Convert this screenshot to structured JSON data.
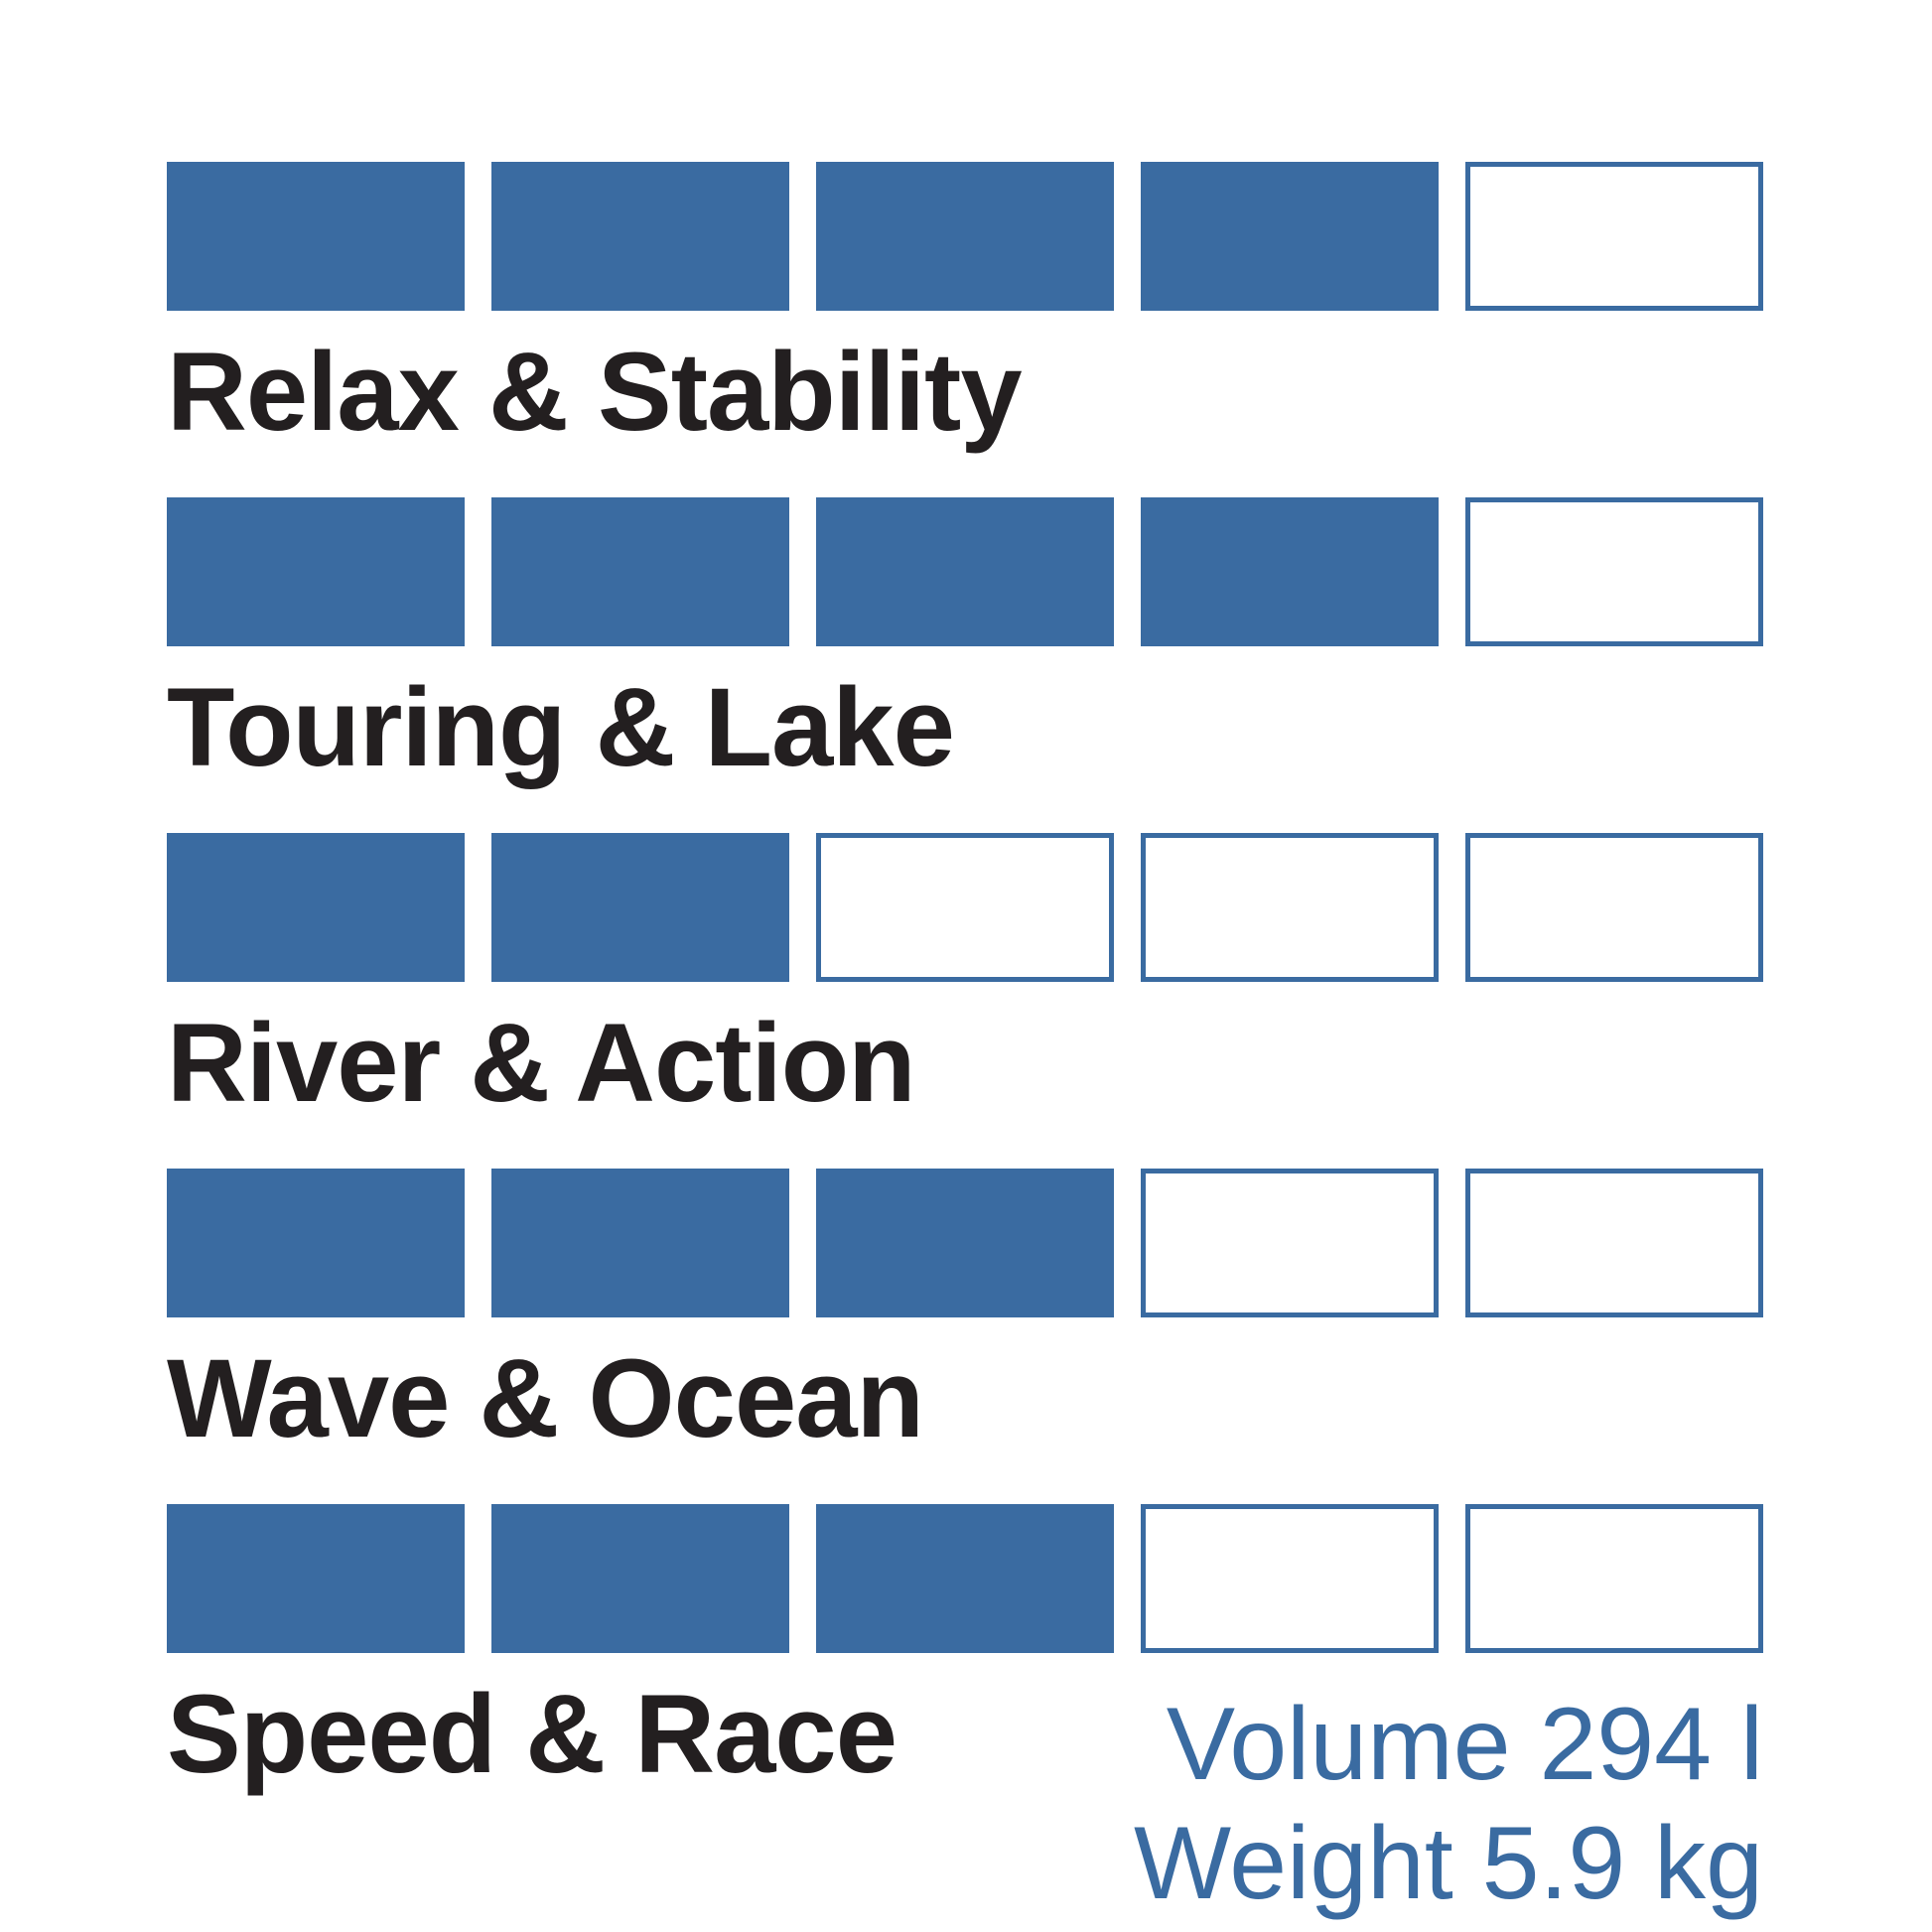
{
  "chart_data": {
    "type": "bar",
    "subtype": "rating-blocks",
    "title": "",
    "categories": [
      "Relax & Stability",
      "Touring & Lake",
      "River & Action",
      "Wave & Ocean",
      "Speed & Race"
    ],
    "values": [
      4,
      4,
      2,
      3,
      3
    ],
    "value_max": 5,
    "legend_position": "none",
    "grid": false,
    "annotations": [
      "Volume 294 l",
      "Weight 5.9 kg"
    ]
  },
  "ratings": [
    {
      "label": "Relax & Stability",
      "filled": 4,
      "total": 5
    },
    {
      "label": "Touring & Lake",
      "filled": 4,
      "total": 5
    },
    {
      "label": "River & Action",
      "filled": 2,
      "total": 5
    },
    {
      "label": "Wave & Ocean",
      "filled": 3,
      "total": 5
    },
    {
      "label": "Speed & Race",
      "filled": 3,
      "total": 5
    }
  ],
  "info": {
    "volume": "Volume 294 l",
    "weight": "Weight 5.9 kg"
  },
  "colors": {
    "accent_blue": "#3A6BA1",
    "label_text": "#231F20",
    "background": "#FFFFFF"
  }
}
